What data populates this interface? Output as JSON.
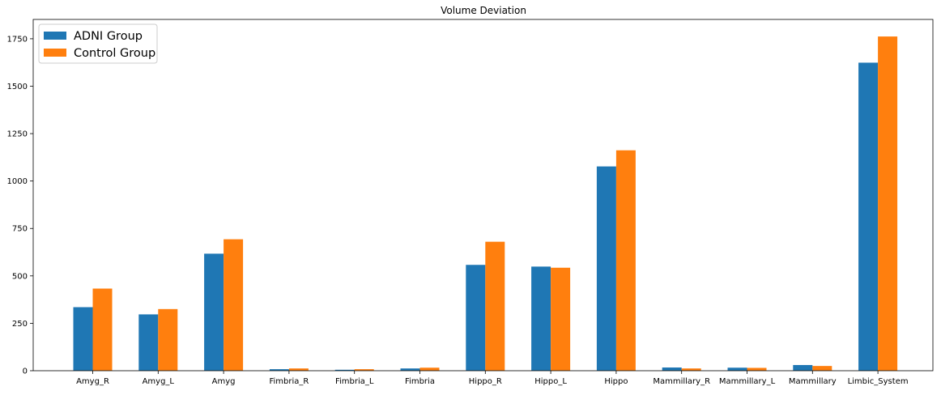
{
  "chart_data": {
    "type": "bar",
    "title": "Volume Deviation",
    "xlabel": "",
    "ylabel": "",
    "categories": [
      "Amyg_R",
      "Amyg_L",
      "Amyg",
      "Fimbria_R",
      "Fimbria_L",
      "Fimbria",
      "Hippo_R",
      "Hippo_L",
      "Hippo",
      "Mammillary_R",
      "Mammillary_L",
      "Mammillary",
      "Limbic_System"
    ],
    "series": [
      {
        "name": "ADNI Group",
        "color": "#1f77b4",
        "values": [
          335,
          297,
          617,
          8,
          5,
          12,
          558,
          549,
          1077,
          17,
          16,
          30,
          1624
        ]
      },
      {
        "name": "Control Group",
        "color": "#ff7f0e",
        "values": [
          433,
          325,
          693,
          12,
          8,
          16,
          680,
          543,
          1162,
          12,
          15,
          25,
          1762
        ]
      }
    ],
    "ylim": [
      0,
      1852
    ],
    "yticks": [
      0,
      250,
      500,
      750,
      1000,
      1250,
      1500,
      1750
    ],
    "legend": "top-left",
    "grid": false
  }
}
